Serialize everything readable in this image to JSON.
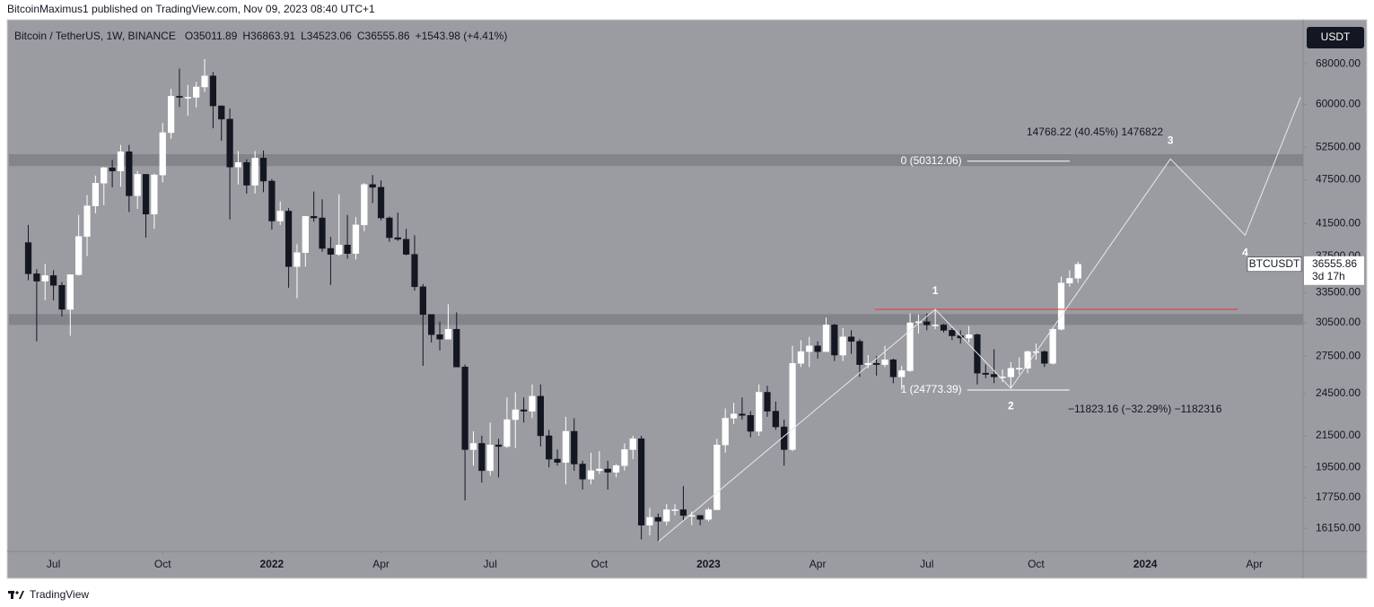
{
  "header": {
    "text": "BitcoinMaximus1 published on TradingView.com, Nov 09, 2023 08:40 UTC+1"
  },
  "chart_data": {
    "type": "candlestick",
    "title": "Bitcoin / TetherUS, 1W, BINANCE",
    "ohlc_labels": [
      "O",
      "H",
      "L",
      "C"
    ],
    "change_label": "+1543.98 (+4.41%)",
    "currency": "USDT",
    "countdown": "3d 17h",
    "log_scale": true,
    "grid": false,
    "colors": {
      "up": "#ffffff",
      "down": "#131722",
      "background": "#9b9ca1",
      "zone": "#808186",
      "wave": "#e8e8e8",
      "fib": "#ffffff"
    },
    "series": [
      {
        "name": "BTCUSDT",
        "values": [
          [
            39100,
            41300,
            34800,
            35500
          ],
          [
            35500,
            36000,
            28800,
            34700
          ],
          [
            34700,
            36600,
            32700,
            35300
          ],
          [
            35300,
            35900,
            32700,
            34250
          ],
          [
            34250,
            34600,
            31100,
            31800
          ],
          [
            31800,
            35400,
            29300,
            35400
          ],
          [
            35400,
            42600,
            35300,
            39850
          ],
          [
            39850,
            45300,
            37500,
            43800
          ],
          [
            43800,
            48100,
            42800,
            47000
          ],
          [
            47000,
            49400,
            43900,
            49300
          ],
          [
            49300,
            50500,
            46400,
            48800
          ],
          [
            48800,
            52900,
            46500,
            51800
          ],
          [
            51800,
            52900,
            43000,
            45200
          ],
          [
            45200,
            48800,
            43400,
            48300
          ],
          [
            48300,
            48300,
            39700,
            42700
          ],
          [
            42700,
            48400,
            40800,
            48200
          ],
          [
            48200,
            56600,
            47100,
            54950
          ],
          [
            54950,
            62900,
            53900,
            61500
          ],
          [
            61500,
            67000,
            59500,
            61300
          ],
          [
            61300,
            63700,
            57900,
            61300
          ],
          [
            61300,
            64300,
            59400,
            63300
          ],
          [
            63300,
            69000,
            62300,
            65500
          ],
          [
            65500,
            66300,
            55700,
            59700
          ],
          [
            59700,
            59800,
            53600,
            57300
          ],
          [
            57300,
            59200,
            42000,
            49400
          ],
          [
            49400,
            51900,
            46800,
            50100
          ],
          [
            50100,
            50600,
            45500,
            46700
          ],
          [
            46700,
            51900,
            45500,
            50800
          ],
          [
            50800,
            52000,
            45700,
            47300
          ],
          [
            47300,
            47600,
            40700,
            41800
          ],
          [
            41800,
            44400,
            41300,
            43100
          ],
          [
            43100,
            43500,
            34000,
            36300
          ],
          [
            36300,
            38900,
            32900,
            37900
          ],
          [
            37900,
            42400,
            36300,
            42400
          ],
          [
            42400,
            45800,
            41700,
            42200
          ],
          [
            42200,
            44700,
            38000,
            38400
          ],
          [
            38400,
            39800,
            34300,
            37700
          ],
          [
            37700,
            45400,
            37500,
            38800
          ],
          [
            38800,
            42600,
            37200,
            37800
          ],
          [
            37800,
            42300,
            37100,
            41300
          ],
          [
            41300,
            47000,
            40500,
            46800
          ],
          [
            46800,
            48200,
            44200,
            46400
          ],
          [
            46400,
            47400,
            41900,
            42200
          ],
          [
            42200,
            42400,
            39200,
            39700
          ],
          [
            39700,
            42900,
            39300,
            39500
          ],
          [
            39500,
            40800,
            37600,
            37700
          ],
          [
            37700,
            40000,
            33700,
            34100
          ],
          [
            34100,
            34400,
            26700,
            31300
          ],
          [
            31300,
            31300,
            28700,
            29400
          ],
          [
            29400,
            30600,
            28000,
            29000
          ],
          [
            29000,
            32300,
            29000,
            29900
          ],
          [
            29900,
            31500,
            26600,
            26600
          ],
          [
            26600,
            26800,
            17600,
            20600
          ],
          [
            20600,
            21800,
            19600,
            21000
          ],
          [
            21000,
            21500,
            18600,
            19300
          ],
          [
            19300,
            22400,
            19000,
            20900
          ],
          [
            20900,
            21300,
            18900,
            20800
          ],
          [
            20800,
            24200,
            20700,
            22600
          ],
          [
            22600,
            24600,
            20700,
            23300
          ],
          [
            23300,
            24200,
            22400,
            23200
          ],
          [
            23200,
            25200,
            22700,
            24300
          ],
          [
            24300,
            25200,
            20800,
            21500
          ],
          [
            21500,
            21900,
            19500,
            20000
          ],
          [
            20000,
            20600,
            19600,
            19800
          ],
          [
            19800,
            22800,
            18500,
            21800
          ],
          [
            21800,
            22700,
            19300,
            19700
          ],
          [
            19700,
            19900,
            18200,
            18800
          ],
          [
            18800,
            20400,
            18500,
            19300
          ],
          [
            19300,
            20500,
            19100,
            19400
          ],
          [
            19400,
            19900,
            18200,
            19200
          ],
          [
            19200,
            19700,
            18900,
            19600
          ],
          [
            19600,
            21000,
            19300,
            20600
          ],
          [
            20600,
            21500,
            20000,
            21300
          ],
          [
            21300,
            21500,
            15600,
            16300
          ],
          [
            16300,
            17200,
            15800,
            16700
          ],
          [
            16700,
            16900,
            15480,
            16500
          ],
          [
            16500,
            17400,
            16300,
            17100
          ],
          [
            17100,
            17400,
            16800,
            17100
          ],
          [
            17100,
            18400,
            16500,
            16800
          ],
          [
            16800,
            17000,
            16300,
            16800
          ],
          [
            16800,
            16800,
            16300,
            16600
          ],
          [
            16600,
            17200,
            16500,
            17100
          ],
          [
            17100,
            21300,
            17100,
            20900
          ],
          [
            20900,
            23400,
            20400,
            22700
          ],
          [
            22700,
            23800,
            22300,
            23000
          ],
          [
            23000,
            24200,
            22600,
            22900
          ],
          [
            22900,
            23200,
            21400,
            21800
          ],
          [
            21800,
            25200,
            21500,
            24600
          ],
          [
            24600,
            25100,
            22800,
            23200
          ],
          [
            23200,
            23900,
            21900,
            22100
          ],
          [
            22100,
            22600,
            19600,
            20600
          ],
          [
            20600,
            28400,
            20500,
            26900
          ],
          [
            26900,
            28900,
            26600,
            27900
          ],
          [
            27900,
            29200,
            26600,
            28400
          ],
          [
            28400,
            28800,
            27300,
            27900
          ],
          [
            27900,
            31000,
            27900,
            30300
          ],
          [
            30300,
            30400,
            27100,
            27600
          ],
          [
            27600,
            30000,
            27100,
            29200
          ],
          [
            29200,
            29800,
            27700,
            28800
          ],
          [
            28800,
            29000,
            25800,
            26800
          ],
          [
            26800,
            27600,
            26500,
            26900
          ],
          [
            26900,
            27500,
            25900,
            26800
          ],
          [
            26800,
            28400,
            26600,
            27200
          ],
          [
            27200,
            27300,
            25300,
            25800
          ],
          [
            25800,
            26700,
            24800,
            26300
          ],
          [
            26300,
            31400,
            26200,
            30500
          ],
          [
            30500,
            31300,
            29500,
            30600
          ],
          [
            30600,
            31400,
            29800,
            30300
          ],
          [
            30300,
            31800,
            29900,
            30300
          ],
          [
            30300,
            30400,
            29600,
            29800
          ],
          [
            29800,
            30000,
            28900,
            29300
          ],
          [
            29300,
            29800,
            28600,
            29100
          ],
          [
            29100,
            30200,
            28700,
            29400
          ],
          [
            29400,
            29500,
            25200,
            26100
          ],
          [
            26100,
            26800,
            25700,
            26000
          ],
          [
            26000,
            28100,
            25300,
            25800
          ],
          [
            25800,
            26400,
            25400,
            25800
          ],
          [
            25800,
            27000,
            24900,
            26500
          ],
          [
            26500,
            27400,
            26000,
            26500
          ],
          [
            26500,
            28000,
            26100,
            27900
          ],
          [
            27900,
            28600,
            27200,
            27900
          ],
          [
            27900,
            28000,
            26600,
            26900
          ],
          [
            26900,
            30000,
            26800,
            29900
          ],
          [
            29900,
            35200,
            29800,
            34500
          ],
          [
            34500,
            35900,
            34100,
            35000
          ],
          [
            35011.89,
            36863.91,
            34523.06,
            36555.86
          ]
        ]
      }
    ],
    "xlim": [
      -2.3,
      151.8
    ],
    "xticks": [
      {
        "value": 3,
        "label": "Jul"
      },
      {
        "value": 16,
        "label": "Oct"
      },
      {
        "value": 29,
        "label": "2022"
      },
      {
        "value": 42,
        "label": "Apr"
      },
      {
        "value": 55,
        "label": "Jul"
      },
      {
        "value": 68,
        "label": "Oct"
      },
      {
        "value": 81,
        "label": "2023"
      },
      {
        "value": 94,
        "label": "Apr"
      },
      {
        "value": 107,
        "label": "Jul"
      },
      {
        "value": 120,
        "label": "Oct"
      },
      {
        "value": 133,
        "label": "2024"
      },
      {
        "value": 146,
        "label": "Apr"
      }
    ],
    "ylim": [
      15030,
      77300
    ],
    "yticks": [
      {
        "value": 16150,
        "label": "16150.00"
      },
      {
        "value": 17750,
        "label": "17750.00"
      },
      {
        "value": 19500,
        "label": "19500.00"
      },
      {
        "value": 21500,
        "label": "21500.00"
      },
      {
        "value": 24500,
        "label": "24500.00"
      },
      {
        "value": 27500,
        "label": "27500.00"
      },
      {
        "value": 30500,
        "label": "30500.00"
      },
      {
        "value": 33500,
        "label": "33500.00"
      },
      {
        "value": 37500,
        "label": "37500.00"
      },
      {
        "value": 41500,
        "label": "41500.00"
      },
      {
        "value": 47500,
        "label": "47500.00"
      },
      {
        "value": 52500,
        "label": "52500.00"
      },
      {
        "value": 60000,
        "label": "60000.00"
      },
      {
        "value": 68000,
        "label": "68000.00"
      }
    ],
    "zones": [
      [
        30300,
        31340
      ],
      [
        49550,
        51400
      ]
    ],
    "wave": [
      {
        "x": 75,
        "y": 15480
      },
      {
        "x": 108,
        "y": 31800,
        "label": "1"
      },
      {
        "x": 117,
        "y": 24900,
        "label": "2"
      },
      {
        "x": 136,
        "y": 50650,
        "label": "3"
      },
      {
        "x": 144.9,
        "y": 40000,
        "label": "4"
      },
      {
        "x": 151.5,
        "y": 61350
      }
    ],
    "red_line": {
      "price": 31800,
      "x": [
        100.8,
        144
      ],
      "color": "#e53935"
    },
    "fib_x": [
      111.8,
      124
    ],
    "fib_levels": [
      {
        "label": "0 (50312.06)",
        "price": 50312.06
      },
      {
        "label": "1 (24773.39)",
        "price": 24773.39
      }
    ],
    "measures": [
      "14768.22 (40.45%) 1476822",
      "−11823.16 (−32.29%) −1182316"
    ]
  },
  "footer": {
    "brand": "TradingView"
  }
}
